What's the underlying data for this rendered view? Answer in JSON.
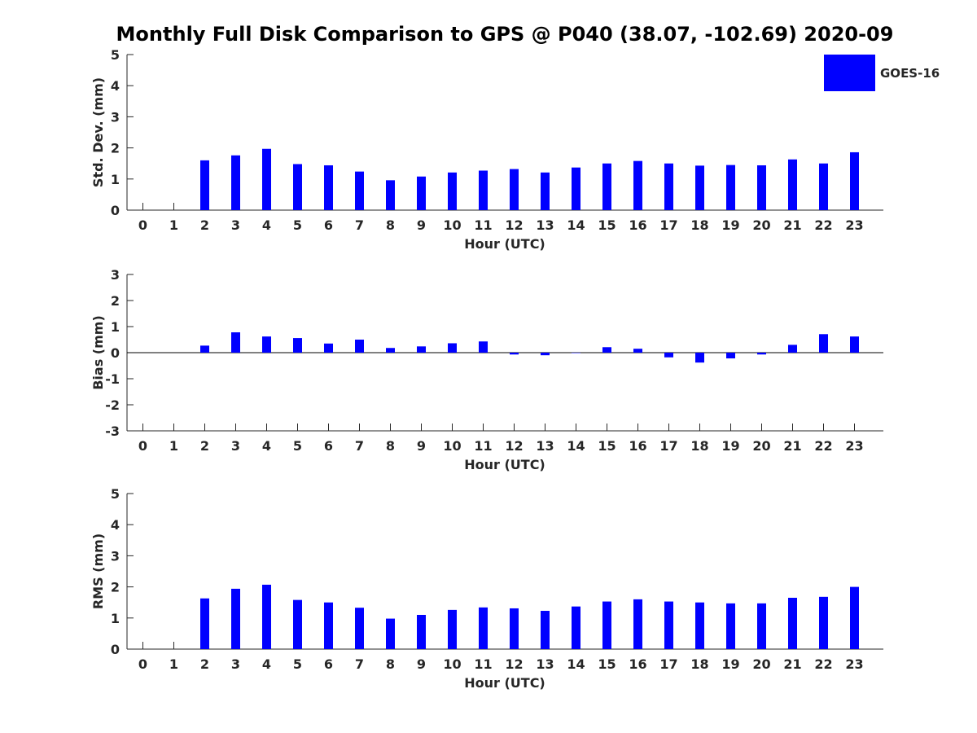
{
  "title": "Monthly Full Disk Comparison to GPS @ P040 (38.07, -102.69) 2020-09",
  "legend": {
    "label": "GOES-16",
    "color": "#0000ff",
    "placement": "top-right"
  },
  "chart_data": [
    {
      "type": "bar",
      "xlabel": "Hour (UTC)",
      "ylabel": "Std. Dev. (mm)",
      "ylim": [
        0,
        5
      ],
      "yticks": [
        "0",
        "1",
        "2",
        "3",
        "4",
        "5"
      ],
      "categories": [
        "0",
        "1",
        "2",
        "3",
        "4",
        "5",
        "6",
        "7",
        "8",
        "9",
        "10",
        "11",
        "12",
        "13",
        "14",
        "15",
        "16",
        "17",
        "18",
        "19",
        "20",
        "21",
        "22",
        "23"
      ],
      "series": [
        {
          "name": "GOES-16",
          "values": [
            null,
            null,
            1.6,
            1.76,
            1.97,
            1.48,
            1.44,
            1.24,
            0.96,
            1.08,
            1.21,
            1.27,
            1.32,
            1.21,
            1.37,
            1.5,
            1.58,
            1.5,
            1.43,
            1.45,
            1.44,
            1.63,
            1.5,
            1.86
          ]
        }
      ]
    },
    {
      "type": "bar",
      "xlabel": "Hour (UTC)",
      "ylabel": "Bias (mm)",
      "ylim": [
        -3,
        3
      ],
      "yticks": [
        "-3",
        "-2",
        "-1",
        "0",
        "1",
        "2",
        "3"
      ],
      "categories": [
        "0",
        "1",
        "2",
        "3",
        "4",
        "5",
        "6",
        "7",
        "8",
        "9",
        "10",
        "11",
        "12",
        "13",
        "14",
        "15",
        "16",
        "17",
        "18",
        "19",
        "20",
        "21",
        "22",
        "23"
      ],
      "series": [
        {
          "name": "GOES-16",
          "values": [
            null,
            null,
            0.27,
            0.78,
            0.62,
            0.56,
            0.35,
            0.5,
            0.18,
            0.24,
            0.36,
            0.43,
            -0.07,
            -0.1,
            0.0,
            0.21,
            0.15,
            -0.18,
            -0.38,
            -0.22,
            -0.07,
            0.3,
            0.71,
            0.62
          ]
        }
      ]
    },
    {
      "type": "bar",
      "xlabel": "Hour (UTC)",
      "ylabel": "RMS (mm)",
      "ylim": [
        0,
        5
      ],
      "yticks": [
        "0",
        "1",
        "2",
        "3",
        "4",
        "5"
      ],
      "categories": [
        "0",
        "1",
        "2",
        "3",
        "4",
        "5",
        "6",
        "7",
        "8",
        "9",
        "10",
        "11",
        "12",
        "13",
        "14",
        "15",
        "16",
        "17",
        "18",
        "19",
        "20",
        "21",
        "22",
        "23"
      ],
      "series": [
        {
          "name": "GOES-16",
          "values": [
            null,
            null,
            1.63,
            1.94,
            2.07,
            1.58,
            1.5,
            1.33,
            0.98,
            1.1,
            1.26,
            1.34,
            1.31,
            1.23,
            1.37,
            1.53,
            1.6,
            1.53,
            1.5,
            1.47,
            1.47,
            1.65,
            1.68,
            2.0
          ]
        }
      ]
    }
  ]
}
